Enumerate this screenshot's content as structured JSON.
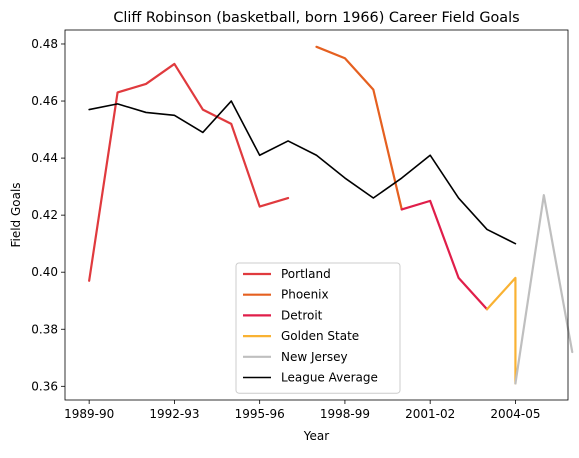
{
  "chart_data": {
    "type": "line",
    "title": "Cliff Robinson (basketball, born 1966) Career Field Goals",
    "xlabel": "Year",
    "ylabel": "Field Goals",
    "x_tick_labels": [
      "1989-90",
      "1992-93",
      "1995-96",
      "1998-99",
      "2001-02",
      "2004-05"
    ],
    "x_tick_positions": [
      0,
      3,
      6,
      9,
      12,
      15
    ],
    "xlim": [
      -0.85,
      16.85
    ],
    "y_tick_labels": [
      "0.36",
      "0.38",
      "0.40",
      "0.42",
      "0.44",
      "0.46",
      "0.48"
    ],
    "y_ticks": [
      0.36,
      0.38,
      0.4,
      0.42,
      0.44,
      0.46,
      0.48
    ],
    "ylim": [
      0.3552,
      0.4849
    ],
    "grid": false,
    "legend_position": "lower center",
    "series": [
      {
        "name": "Portland",
        "color": "#E03A3E",
        "x": [
          0,
          1,
          2,
          3,
          4,
          5,
          6,
          7
        ],
        "y": [
          0.397,
          0.463,
          0.466,
          0.473,
          0.457,
          0.452,
          0.423,
          0.426
        ]
      },
      {
        "name": "Phoenix",
        "color": "#E56020",
        "x": [
          8,
          9,
          10,
          11
        ],
        "y": [
          0.479,
          0.475,
          0.464,
          0.422
        ]
      },
      {
        "name": "Detroit",
        "color": "#E01E4A",
        "x": [
          11,
          12,
          13,
          14
        ],
        "y": [
          0.422,
          0.425,
          0.398,
          0.387
        ]
      },
      {
        "name": "Golden State",
        "color": "#F9B233",
        "x": [
          14,
          15,
          15
        ],
        "y": [
          0.387,
          0.398,
          0.361
        ]
      },
      {
        "name": "New Jersey",
        "color": "#BFBFBF",
        "x": [
          15,
          16,
          17
        ],
        "y": [
          0.361,
          0.427,
          0.372
        ]
      },
      {
        "name": "League Average",
        "color": "#000000",
        "x": [
          0,
          1,
          2,
          3,
          4,
          5,
          6,
          7,
          8,
          9,
          10,
          11,
          12,
          13,
          14,
          15
        ],
        "y": [
          0.457,
          0.459,
          0.456,
          0.455,
          0.449,
          0.46,
          0.441,
          0.446,
          0.441,
          0.433,
          0.426,
          0.433,
          0.441,
          0.426,
          0.415,
          0.41
        ]
      }
    ]
  }
}
